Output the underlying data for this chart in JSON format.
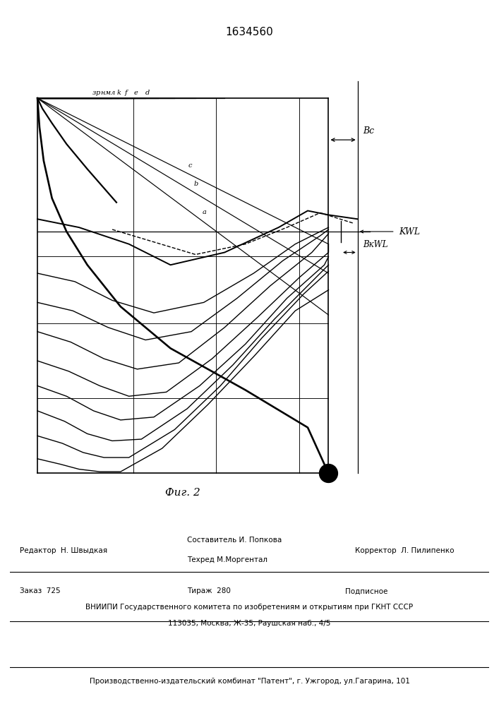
{
  "title": "1634560",
  "fig_label": "Фиг. 2",
  "background_color": "#ffffff",
  "label_bc": "Bс",
  "label_bkwl": "BкWL",
  "label_kwl": "KWL",
  "footer_editor": "Редактор  Н. Швыдкая",
  "footer_comp1": "Составитель И. Попкова",
  "footer_comp2": "Техред М.Моргентал",
  "footer_corrector": "Корректор  Л. Пилипенко",
  "footer_order": "Заказ  725",
  "footer_copies": "Тираж  280",
  "footer_sub": "Подписное",
  "footer_vniipи": "ВНИИПИ Государственного комитета по изобретениям и открытиям при ГКНТ СССР",
  "footer_addr": "113035, Москва, Ж-35, Раушская наб., 4/5",
  "footer_patent": "Производственно-издательский комбинат \"Патент\", г. Ужгород, ул.Гагарина, 101"
}
